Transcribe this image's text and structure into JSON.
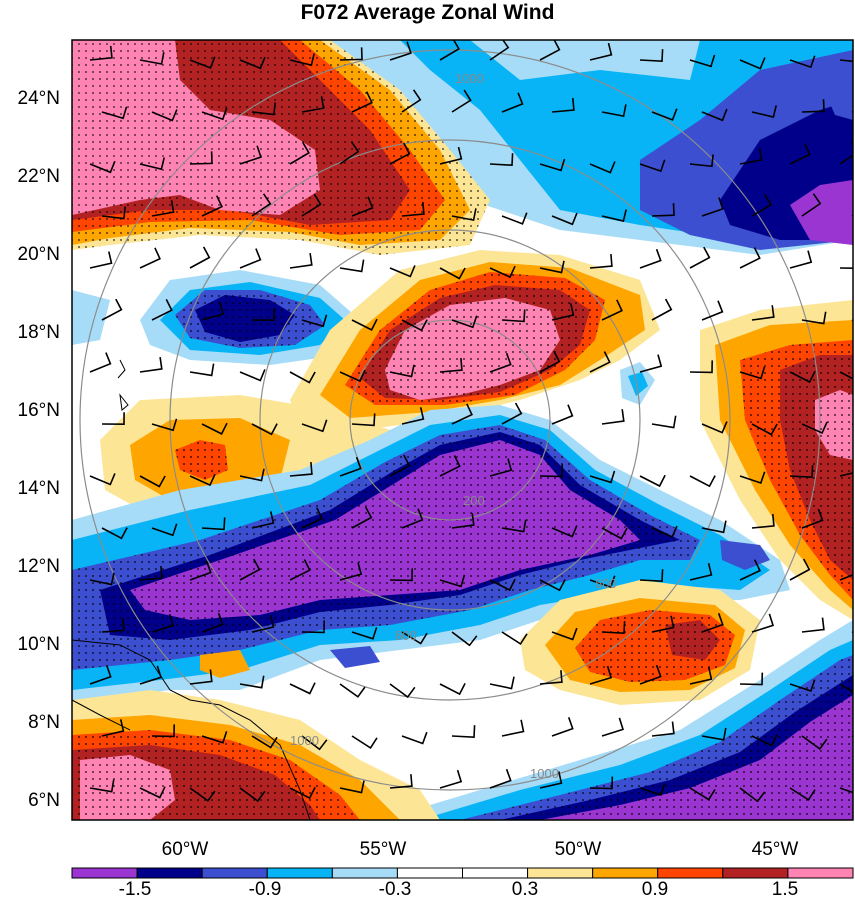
{
  "title": "F072 Average Zonal Wind",
  "lat_labels": [
    "24°N",
    "22°N",
    "20°N",
    "18°N",
    "16°N",
    "14°N",
    "12°N",
    "10°N",
    "8°N",
    "6°N"
  ],
  "lon_labels": [
    "60°W",
    "55°W",
    "50°W",
    "45°W"
  ],
  "colorbar": {
    "colors": [
      "#9a35d2",
      "#00008b",
      "#3b4fd0",
      "#08b4f5",
      "#a6dcf7",
      "#ffffff",
      "#ffffff",
      "#fde596",
      "#ffa500",
      "#ff4500",
      "#b22222",
      "#ff84b3"
    ],
    "labels": [
      "-1.5",
      "-0.9",
      "-0.3",
      "0.3",
      "0.9",
      "1.5"
    ]
  },
  "range_rings": {
    "labels": [
      "200",
      "600",
      "1000"
    ]
  }
}
